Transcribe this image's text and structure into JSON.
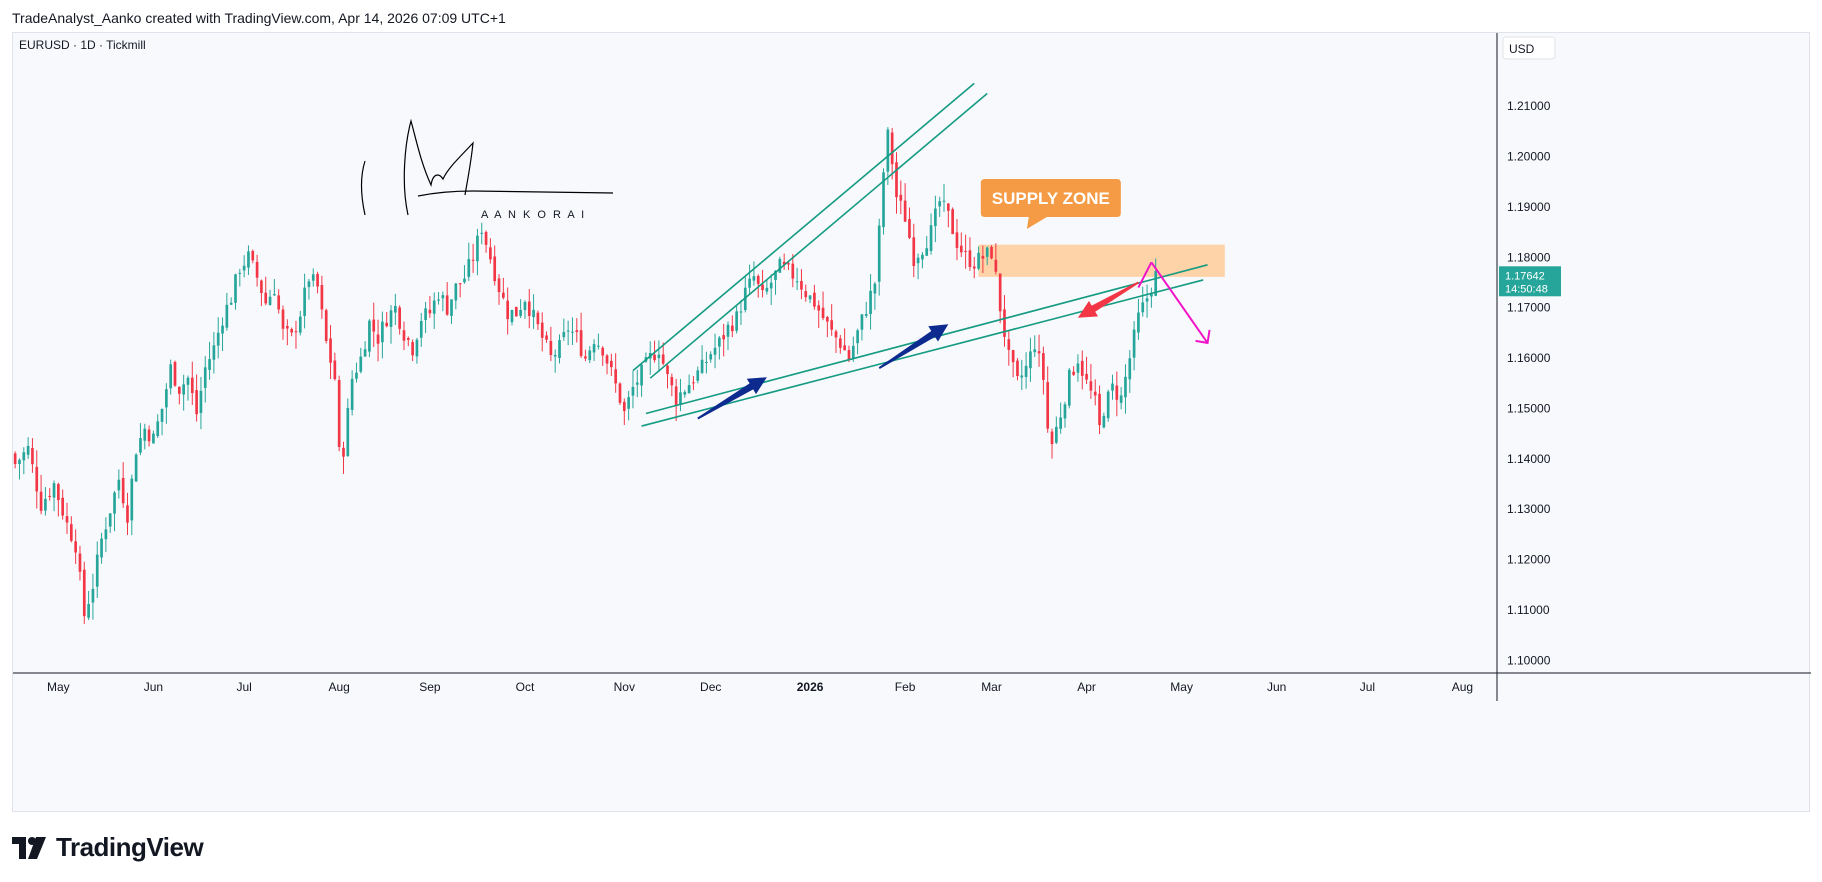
{
  "header": {
    "caption": "TradeAnalyst_Aanko created with TradingView.com, Apr 14, 2026 07:09 UTC+1"
  },
  "footer": {
    "brand": "TradingView"
  },
  "colors": {
    "up": "#26a69a",
    "down": "#f23645",
    "trendline": "#149b82",
    "supply_fill": "#ffcc99",
    "callout": "#f59b45",
    "blue_arrow": "#0d2a8f",
    "red_arrow": "#f23645",
    "magenta_arrow": "#f013c8",
    "price_tag": "#26a69a"
  },
  "chart_data": {
    "type": "candlestick",
    "symbol_label": "EURUSD · 1D · Tickmill",
    "currency": "USD",
    "last_price": "1.17642",
    "countdown": "14:50:48",
    "y_ticks": [
      "1.21000",
      "1.20000",
      "1.19000",
      "1.18000",
      "1.17000",
      "1.16000",
      "1.15000",
      "1.14000",
      "1.13000",
      "1.12000",
      "1.11000",
      "1.10000"
    ],
    "y_tick_values": [
      1.21,
      1.2,
      1.19,
      1.18,
      1.17,
      1.16,
      1.15,
      1.14,
      1.13,
      1.12,
      1.11,
      1.1
    ],
    "ylim": [
      1.0975,
      1.2245
    ],
    "x_labels": [
      {
        "text": "May",
        "index": 10,
        "bold": false
      },
      {
        "text": "Jun",
        "index": 32,
        "bold": false
      },
      {
        "text": "Jul",
        "index": 53,
        "bold": false
      },
      {
        "text": "Aug",
        "index": 75,
        "bold": false
      },
      {
        "text": "Sep",
        "index": 96,
        "bold": false
      },
      {
        "text": "Oct",
        "index": 118,
        "bold": false
      },
      {
        "text": "Nov",
        "index": 141,
        "bold": false
      },
      {
        "text": "Dec",
        "index": 161,
        "bold": false
      },
      {
        "text": "2026",
        "index": 184,
        "bold": true
      },
      {
        "text": "Feb",
        "index": 206,
        "bold": false
      },
      {
        "text": "Mar",
        "index": 226,
        "bold": false
      },
      {
        "text": "Apr",
        "index": 248,
        "bold": false
      },
      {
        "text": "May",
        "index": 270,
        "bold": false
      },
      {
        "text": "Jun",
        "index": 292,
        "bold": false
      },
      {
        "text": "Jul",
        "index": 313,
        "bold": false
      },
      {
        "text": "Aug",
        "index": 335,
        "bold": false
      }
    ],
    "x_range": [
      -0.5,
      343
    ],
    "close_path": [
      [
        0,
        1.139
      ],
      [
        3,
        1.142
      ],
      [
        6,
        1.131
      ],
      [
        9,
        1.135
      ],
      [
        12,
        1.127
      ],
      [
        14,
        1.123
      ],
      [
        16,
        1.109
      ],
      [
        18,
        1.115
      ],
      [
        20,
        1.124
      ],
      [
        22,
        1.13
      ],
      [
        24,
        1.136
      ],
      [
        26,
        1.129
      ],
      [
        28,
        1.142
      ],
      [
        30,
        1.146
      ],
      [
        32,
        1.144
      ],
      [
        34,
        1.15
      ],
      [
        36,
        1.158
      ],
      [
        38,
        1.154
      ],
      [
        40,
        1.156
      ],
      [
        42,
        1.149
      ],
      [
        44,
        1.158
      ],
      [
        46,
        1.162
      ],
      [
        48,
        1.168
      ],
      [
        50,
        1.172
      ],
      [
        52,
        1.178
      ],
      [
        54,
        1.18
      ],
      [
        56,
        1.176
      ],
      [
        58,
        1.171
      ],
      [
        60,
        1.174
      ],
      [
        62,
        1.165
      ],
      [
        64,
        1.164
      ],
      [
        66,
        1.169
      ],
      [
        68,
        1.176
      ],
      [
        70,
        1.174
      ],
      [
        72,
        1.163
      ],
      [
        74,
        1.156
      ],
      [
        75,
        1.141
      ],
      [
        76,
        1.142
      ],
      [
        78,
        1.156
      ],
      [
        80,
        1.16
      ],
      [
        82,
        1.167
      ],
      [
        84,
        1.164
      ],
      [
        86,
        1.168
      ],
      [
        88,
        1.17
      ],
      [
        90,
        1.165
      ],
      [
        92,
        1.162
      ],
      [
        94,
        1.168
      ],
      [
        96,
        1.169
      ],
      [
        98,
        1.173
      ],
      [
        100,
        1.17
      ],
      [
        102,
        1.174
      ],
      [
        104,
        1.176
      ],
      [
        106,
        1.18
      ],
      [
        108,
        1.186
      ],
      [
        110,
        1.18
      ],
      [
        112,
        1.174
      ],
      [
        114,
        1.169
      ],
      [
        116,
        1.169
      ],
      [
        118,
        1.172
      ],
      [
        120,
        1.168
      ],
      [
        122,
        1.164
      ],
      [
        124,
        1.16
      ],
      [
        126,
        1.162
      ],
      [
        128,
        1.166
      ],
      [
        130,
        1.164
      ],
      [
        132,
        1.16
      ],
      [
        134,
        1.164
      ],
      [
        136,
        1.162
      ],
      [
        138,
        1.157
      ],
      [
        140,
        1.152
      ],
      [
        141,
        1.149
      ],
      [
        143,
        1.154
      ],
      [
        145,
        1.157
      ],
      [
        147,
        1.16
      ],
      [
        149,
        1.162
      ],
      [
        151,
        1.156
      ],
      [
        153,
        1.152
      ],
      [
        155,
        1.154
      ],
      [
        157,
        1.156
      ],
      [
        159,
        1.158
      ],
      [
        161,
        1.161
      ],
      [
        163,
        1.163
      ],
      [
        165,
        1.166
      ],
      [
        167,
        1.168
      ],
      [
        169,
        1.173
      ],
      [
        171,
        1.176
      ],
      [
        173,
        1.172
      ],
      [
        175,
        1.175
      ],
      [
        177,
        1.178
      ],
      [
        179,
        1.177
      ],
      [
        181,
        1.176
      ],
      [
        183,
        1.173
      ],
      [
        185,
        1.171
      ],
      [
        187,
        1.168
      ],
      [
        189,
        1.165
      ],
      [
        191,
        1.163
      ],
      [
        193,
        1.16
      ],
      [
        195,
        1.165
      ],
      [
        197,
        1.17
      ],
      [
        199,
        1.175
      ],
      [
        200,
        1.185
      ],
      [
        201,
        1.197
      ],
      [
        202,
        1.204
      ],
      [
        203,
        1.199
      ],
      [
        204,
        1.192
      ],
      [
        206,
        1.188
      ],
      [
        208,
        1.18
      ],
      [
        210,
        1.182
      ],
      [
        212,
        1.185
      ],
      [
        214,
        1.191
      ],
      [
        216,
        1.188
      ],
      [
        218,
        1.183
      ],
      [
        220,
        1.18
      ],
      [
        222,
        1.179
      ],
      [
        224,
        1.18
      ],
      [
        226,
        1.181
      ],
      [
        227,
        1.176
      ],
      [
        228,
        1.17
      ],
      [
        230,
        1.16
      ],
      [
        232,
        1.155
      ],
      [
        234,
        1.158
      ],
      [
        236,
        1.163
      ],
      [
        238,
        1.156
      ],
      [
        239,
        1.146
      ],
      [
        240,
        1.143
      ],
      [
        242,
        1.149
      ],
      [
        244,
        1.156
      ],
      [
        246,
        1.16
      ],
      [
        248,
        1.155
      ],
      [
        250,
        1.151
      ],
      [
        251,
        1.146
      ],
      [
        252,
        1.15
      ],
      [
        254,
        1.154
      ],
      [
        256,
        1.152
      ],
      [
        258,
        1.16
      ],
      [
        260,
        1.168
      ],
      [
        262,
        1.172
      ],
      [
        264,
        1.1764
      ]
    ],
    "supply_zone": {
      "label": "SUPPLY ZONE",
      "x0": 223,
      "x1": 280,
      "y0": 1.1761,
      "y1": 1.1825
    },
    "trendlines": [
      {
        "x0": 143,
        "y0": 1.1575,
        "x1": 222,
        "y1": 1.2145
      },
      {
        "x0": 147,
        "y0": 1.156,
        "x1": 225,
        "y1": 1.2125
      },
      {
        "x0": 146,
        "y0": 1.149,
        "x1": 276,
        "y1": 1.1785
      },
      {
        "x0": 145,
        "y0": 1.1465,
        "x1": 275,
        "y1": 1.1755
      }
    ],
    "arrows": [
      {
        "color": "blue_arrow",
        "x0": 158,
        "y0": 1.148,
        "x1": 174,
        "y1": 1.1562
      },
      {
        "color": "blue_arrow",
        "x0": 200,
        "y0": 1.158,
        "x1": 216,
        "y1": 1.1667
      },
      {
        "color": "red_arrow",
        "x0": 260,
        "y0": 1.175,
        "x1": 246,
        "y1": 1.168
      },
      {
        "color": "magenta_arrow",
        "x0": 260,
        "y0": 1.174,
        "x1": 263,
        "y1": 1.179
      },
      {
        "color": "magenta_arrow",
        "x0": 263,
        "y0": 1.179,
        "x1": 276,
        "y1": 1.163
      }
    ],
    "signature_text": "A A N K O   R A I",
    "callout_anchor": {
      "x": 230,
      "y": 1.183
    }
  }
}
